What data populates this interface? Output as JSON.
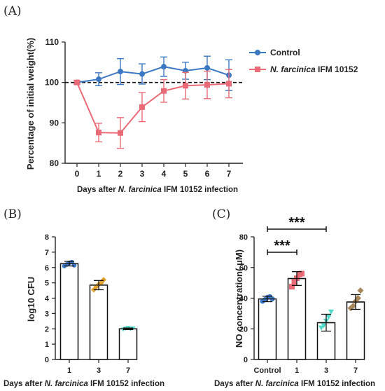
{
  "chart_data": [
    {
      "panel_label": "(A)",
      "type": "line",
      "x": [
        0,
        1,
        2,
        3,
        4,
        5,
        6,
        7
      ],
      "xlabel_pre": "Days after ",
      "xlabel_em": "N. farcinica",
      "xlabel_post": " IFM 10152 infection",
      "ylabel": "Percentage of initial weight(%)",
      "ylim": [
        80,
        110
      ],
      "yticks": [
        80,
        90,
        100,
        110
      ],
      "reference_line": 100,
      "series": [
        {
          "name": "Control",
          "name_em": "",
          "color": "#3b78c3",
          "marker": "circle",
          "values": [
            100,
            100.8,
            102.7,
            102.1,
            103.9,
            102.9,
            103.6,
            101.8
          ],
          "errors": [
            0.4,
            1.6,
            3.2,
            2.5,
            2.4,
            2.1,
            2.9,
            3.8
          ]
        },
        {
          "name": " IFM 10152",
          "name_em": "N. farcinica",
          "color": "#ea6b78",
          "marker": "square",
          "values": [
            100,
            87.6,
            87.5,
            93.9,
            97.9,
            99.2,
            99.4,
            99.7
          ],
          "errors": [
            0.4,
            2.3,
            3.8,
            3.6,
            2.8,
            3.3,
            3.4,
            3.5
          ]
        }
      ]
    },
    {
      "panel_label": "(B)",
      "type": "bar",
      "categories": [
        "1",
        "3",
        "7"
      ],
      "values": [
        6.25,
        4.85,
        2.0
      ],
      "errors": [
        0.15,
        0.3,
        0.05
      ],
      "points": [
        [
          6.1,
          6.2,
          6.3,
          6.35,
          6.15
        ],
        [
          4.55,
          4.75,
          4.9,
          5.0,
          5.2
        ],
        [
          1.95,
          2.0,
          2.05,
          1.98,
          2.02
        ]
      ],
      "point_colors": [
        "#3b78c3",
        "#e0a12d",
        "#4ed8c8"
      ],
      "ylabel": "log10 CFU",
      "xlabel_pre": "Days after ",
      "xlabel_em": "N. farcinica",
      "xlabel_post": " IFM 10152 infection",
      "ylim": [
        0,
        8
      ],
      "yticks": [
        0,
        1,
        2,
        3,
        4,
        5,
        6,
        7,
        8
      ]
    },
    {
      "panel_label": "(C)",
      "type": "bar",
      "categories": [
        "Control",
        "1",
        "3",
        "7"
      ],
      "values": [
        39.5,
        52.8,
        24.0,
        37.5
      ],
      "errors": [
        1.8,
        4.5,
        5.5,
        4.8
      ],
      "points": [
        [
          38.0,
          39.0,
          40.5,
          41.0,
          39.5
        ],
        [
          47.5,
          50.5,
          53.0,
          55.5,
          56.0
        ],
        [
          20.5,
          22.0,
          25.0,
          27.5,
          31.0
        ],
        [
          33.5,
          35.0,
          38.0,
          40.0,
          45.0
        ]
      ],
      "point_colors": [
        "#3b78c3",
        "#ea6b78",
        "#4ed8c8",
        "#a8875c"
      ],
      "ylabel": "NO concentration( μM)",
      "xlabel_pre": "Days after ",
      "xlabel_em": "N. farcinica",
      "xlabel_post": " IFM 10152 infection",
      "ylim": [
        0,
        80
      ],
      "yticks": [
        0,
        20,
        40,
        60,
        80
      ],
      "significance": [
        {
          "from": 0,
          "to": 1,
          "label": "***"
        },
        {
          "from": 0,
          "to": 2,
          "label": "***"
        }
      ]
    }
  ]
}
